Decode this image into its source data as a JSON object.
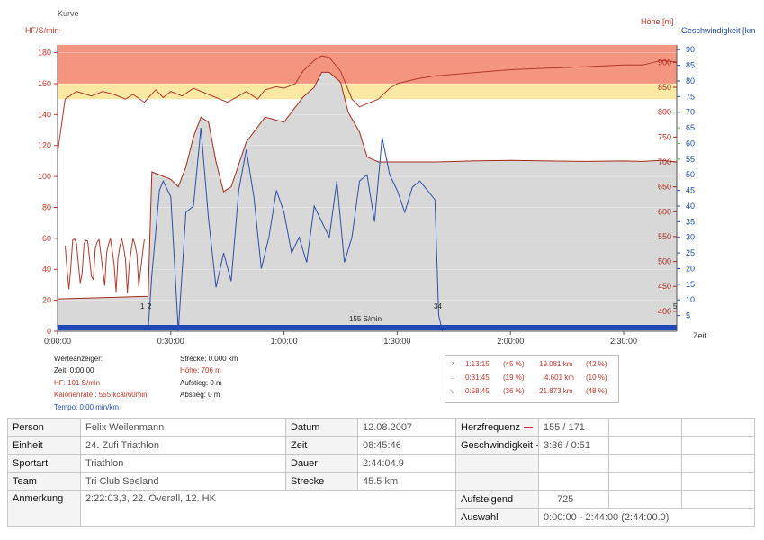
{
  "chart_data": {
    "type": "line",
    "title": "Kurve",
    "left_axis_label": "HF/S/min",
    "right_axis_label_1": "Höhe [m]",
    "right_axis_label_2": "Geschwindigkeit [km",
    "x_axis_label": "Zeit",
    "x_ticks": [
      "0:00:00",
      "0:30:00",
      "1:00:00",
      "1:30:00",
      "2:00:00",
      "2:30:00"
    ],
    "x_range_seconds": [
      0,
      9844
    ],
    "left_ticks": [
      0,
      20,
      40,
      60,
      80,
      100,
      120,
      140,
      160,
      180
    ],
    "left_range": [
      0,
      185
    ],
    "elev_ticks": [
      400,
      450,
      500,
      550,
      600,
      650,
      700,
      750,
      800,
      850,
      900
    ],
    "elev_range": [
      360,
      935
    ],
    "speed_ticks": [
      5,
      10,
      15,
      20,
      25,
      30,
      35,
      40,
      45,
      50,
      55,
      60,
      65,
      70,
      75,
      80,
      85,
      90
    ],
    "speed_range": [
      0,
      91.5
    ],
    "markers": [
      "1",
      "2",
      "34",
      "5"
    ],
    "cadence_label": "155 S/min",
    "colors": {
      "heart_rate": "#b0392b",
      "speed": "#2b4fa8",
      "elevation_fill": "#d8d8d8",
      "zone_high": "#f4957f",
      "zone_mid": "#fbe9a3",
      "cadence_bar": "#1f49b5"
    },
    "series": [
      {
        "name": "Herzfrequenz",
        "x_min": [
          0,
          2,
          5,
          9,
          12,
          15,
          18,
          20,
          23,
          26,
          28,
          30,
          33,
          36,
          40,
          45,
          48,
          50,
          53,
          55,
          58,
          60,
          63,
          65,
          68,
          70,
          72,
          75,
          78,
          80,
          83,
          85,
          88,
          90,
          95,
          100,
          110,
          120,
          130,
          140,
          150,
          155,
          160,
          164
        ],
        "y": [
          115,
          150,
          155,
          152,
          155,
          153,
          150,
          153,
          148,
          156,
          151,
          155,
          152,
          157,
          153,
          148,
          152,
          155,
          150,
          156,
          158,
          157,
          160,
          168,
          175,
          178,
          177,
          168,
          150,
          145,
          148,
          150,
          157,
          160,
          163,
          165,
          167,
          169,
          170,
          171,
          172,
          172,
          175,
          174
        ]
      },
      {
        "name": "Geschwindigkeit",
        "x_min": [
          0,
          24,
          25,
          27,
          28,
          30,
          32,
          34,
          36,
          38,
          40,
          42,
          44,
          46,
          48,
          50,
          52,
          54,
          56,
          58,
          60,
          62,
          64,
          66,
          68,
          70,
          72,
          74,
          76,
          78,
          80,
          82,
          84,
          86,
          88,
          90,
          92,
          94,
          96,
          98,
          100,
          101,
          102,
          164
        ],
        "y": [
          0,
          0,
          18,
          45,
          48,
          43,
          0,
          38,
          40,
          65,
          36,
          14,
          25,
          16,
          45,
          58,
          43,
          20,
          30,
          45,
          38,
          25,
          30,
          22,
          40,
          35,
          30,
          48,
          22,
          30,
          48,
          50,
          35,
          62,
          50,
          45,
          38,
          46,
          48,
          45,
          42,
          5,
          0,
          0
        ]
      },
      {
        "name": "Höhe",
        "x_min": [
          0,
          24,
          25,
          30,
          32,
          34,
          36,
          38,
          40,
          42,
          44,
          46,
          50,
          55,
          60,
          65,
          68,
          70,
          72,
          75,
          77,
          80,
          82,
          85,
          87,
          90,
          95,
          100,
          110,
          120,
          130,
          140,
          150,
          155,
          160,
          164
        ],
        "y": [
          425,
          430,
          680,
          665,
          650,
          690,
          750,
          790,
          780,
          700,
          640,
          650,
          740,
          790,
          780,
          830,
          850,
          880,
          880,
          860,
          800,
          760,
          710,
          700,
          700,
          700,
          700,
          700,
          702,
          703,
          702,
          701,
          702,
          701,
          703,
          700
        ]
      }
    ]
  },
  "axis_text": {
    "kurve": "Kurve",
    "hf": "HF/S/min",
    "hoehe": "Höhe [m]",
    "geschw": "Geschwindigkeit [km",
    "zeit": "Zeit",
    "m1": "1",
    "m2": "2",
    "m34": "34",
    "m5": "5",
    "cad": "155 S/min"
  },
  "stats": {
    "werteanzeiger": "Werteanzeiger:",
    "zeit": "Zeit: 0:00:00",
    "hf": "HF: 101 S/min",
    "kalorien": "Kalorienrate : 555 kcal/60min",
    "tempo": "Tempo: 0:00 min/km",
    "strecke": "Strecke: 0.000 km",
    "hoehe": "Höhe: 706 m",
    "aufstieg": "Aufstieg: 0 m",
    "abstieg": "Abstieg: 0 m"
  },
  "zones": [
    {
      "arrow": "↗",
      "time": "1:13:15",
      "pct": "(45 %)",
      "dist": "19.081 km",
      "dpct": "(42 %)"
    },
    {
      "arrow": "→",
      "time": "0:31:45",
      "pct": "(19 %)",
      "dist": "4.601 km",
      "dpct": "(10 %)"
    },
    {
      "arrow": "↘",
      "time": "0:58:45",
      "pct": "(36 %)",
      "dist": "21.873 km",
      "dpct": "(48 %)"
    }
  ],
  "info": {
    "person_k": "Person",
    "person_v": "Felix Weilenmann",
    "einheit_k": "Einheit",
    "einheit_v": "24. Zufi Triathlon",
    "sportart_k": "Sportart",
    "sportart_v": "Triathlon",
    "team_k": "Team",
    "team_v": "Tri Club Seeland",
    "anmerkung_k": "Anmerkung",
    "anmerkung_v": "2:22:03,3, 22. Overall, 12. HK",
    "datum_k": "Datum",
    "datum_v": "12.08.2007",
    "zeit_k": "Zeit",
    "zeit_v": "08:45:46",
    "dauer_k": "Dauer",
    "dauer_v": "2:44:04.9",
    "strecke_k": "Strecke",
    "strecke_v": "45.5 km",
    "hf_k": "Herzfrequenz",
    "hf_v": "155 / 171",
    "gs_k": "Geschwindigkeit",
    "gs_v": "3:36 / 0:51",
    "aufsteigend_k": "Aufsteigend",
    "aufsteigend_v": "725",
    "auswahl_k": "Auswahl",
    "auswahl_v": "0:00:00 - 2:44:00 (2:44:00.0)"
  }
}
